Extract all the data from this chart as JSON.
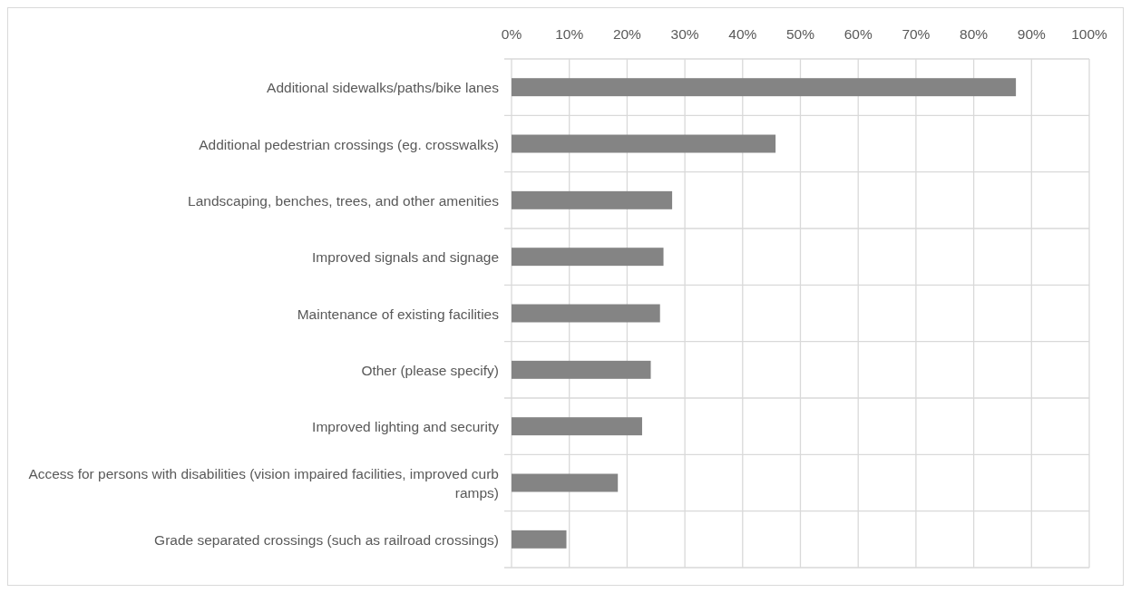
{
  "chart_data": {
    "type": "bar",
    "orientation": "horizontal",
    "categories": [
      "Additional sidewalks/paths/bike lanes",
      "Additional pedestrian crossings (eg. crosswalks)",
      "Landscaping, benches, trees, and other amenities",
      "Improved signals and signage",
      "Maintenance of existing facilities",
      "Other (please specify)",
      "Improved lighting and security",
      "Access for persons with disabilities (vision impaired facilities, improved curb ramps)",
      "Grade separated crossings (such as railroad crossings)"
    ],
    "values": [
      87.3,
      45.7,
      27.8,
      26.3,
      25.7,
      24.1,
      22.6,
      18.4,
      9.5
    ],
    "color": "#848484",
    "xlim": [
      0,
      100
    ],
    "xticks": [
      {
        "value": 0,
        "label": "0%"
      },
      {
        "value": 10,
        "label": "10%"
      },
      {
        "value": 20,
        "label": "20%"
      },
      {
        "value": 30,
        "label": "30%"
      },
      {
        "value": 40,
        "label": "40%"
      },
      {
        "value": 50,
        "label": "50%"
      },
      {
        "value": 60,
        "label": "60%"
      },
      {
        "value": 70,
        "label": "70%"
      },
      {
        "value": 80,
        "label": "80%"
      },
      {
        "value": 90,
        "label": "90%"
      },
      {
        "value": 100,
        "label": "100%"
      }
    ],
    "grid": true
  }
}
